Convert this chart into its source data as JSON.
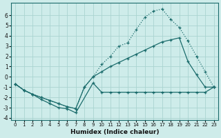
{
  "xlabel": "Humidex (Indice chaleur)",
  "bg_color": "#ceecea",
  "grid_color": "#aad4d0",
  "line_color": "#1a6b6b",
  "xlim": [
    -0.5,
    23.5
  ],
  "ylim": [
    -4.2,
    7.2
  ],
  "xticks": [
    0,
    1,
    2,
    3,
    4,
    5,
    6,
    7,
    8,
    9,
    10,
    11,
    12,
    13,
    14,
    15,
    16,
    17,
    18,
    19,
    20,
    21,
    22,
    23
  ],
  "yticks": [
    -4,
    -3,
    -2,
    -1,
    0,
    1,
    2,
    3,
    4,
    5,
    6
  ],
  "line1_x": [
    0,
    1,
    2,
    3,
    4,
    5,
    6,
    7,
    9,
    10,
    11,
    12,
    13,
    14,
    15,
    16,
    17,
    18,
    19,
    20,
    21,
    22,
    23
  ],
  "line1_y": [
    -0.7,
    -1.3,
    -1.7,
    -2.2,
    -2.6,
    -3.0,
    -3.1,
    -3.5,
    -0.6,
    -1.5,
    -1.5,
    -1.5,
    -1.5,
    -1.5,
    -1.5,
    -1.5,
    -1.5,
    -1.5,
    -1.5,
    -1.5,
    -1.5,
    -1.5,
    -1.0
  ],
  "line2_x": [
    0,
    1,
    2,
    3,
    4,
    5,
    6,
    7,
    8,
    9,
    10,
    11,
    12,
    13,
    14,
    15,
    16,
    17,
    18,
    19,
    20,
    21,
    22,
    23
  ],
  "line2_y": [
    -0.7,
    -1.3,
    -1.7,
    -2.0,
    -2.3,
    -2.6,
    -2.9,
    -3.1,
    -1.0,
    0.0,
    0.5,
    1.0,
    1.4,
    1.8,
    2.2,
    2.6,
    3.0,
    3.4,
    3.6,
    3.8,
    1.5,
    0.2,
    -1.0,
    -1.0
  ],
  "line3_x": [
    0,
    1,
    2,
    3,
    4,
    5,
    6,
    7,
    8,
    9,
    10,
    11,
    12,
    13,
    14,
    15,
    16,
    17,
    18,
    19,
    20,
    21,
    22,
    23
  ],
  "line3_y": [
    -0.7,
    -1.3,
    -1.7,
    -2.0,
    -2.3,
    -2.6,
    -2.9,
    -3.1,
    -1.0,
    0.0,
    1.2,
    2.0,
    3.0,
    3.3,
    4.6,
    5.8,
    6.4,
    6.6,
    5.6,
    4.8,
    3.5,
    2.0,
    0.5,
    -1.0
  ]
}
